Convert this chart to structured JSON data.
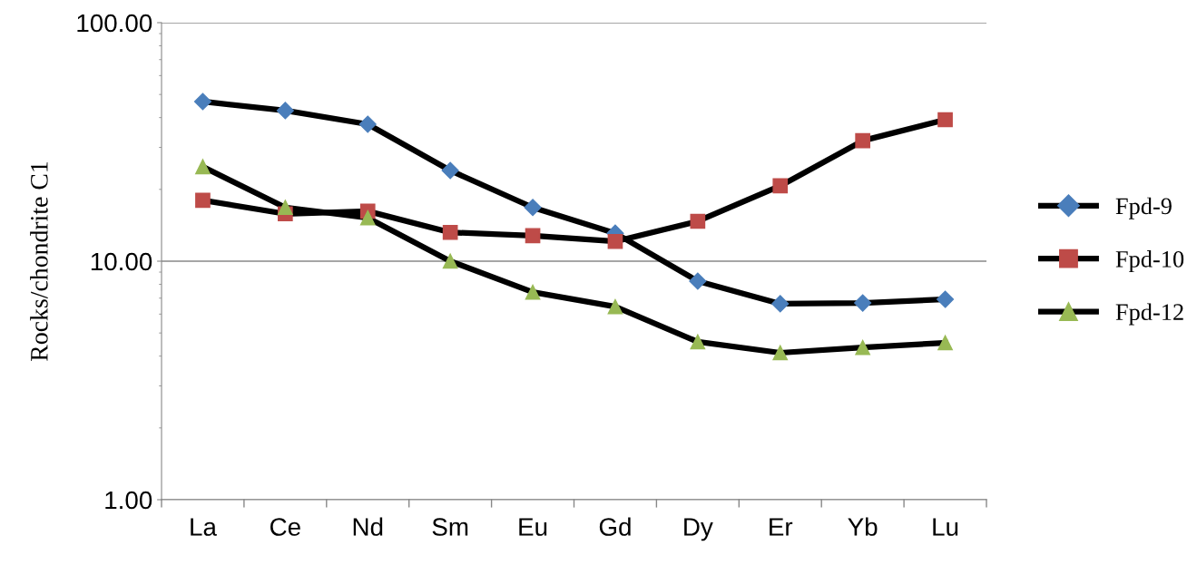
{
  "chart_data": {
    "type": "line",
    "ylabel": "Rocks/chondrite C1",
    "categories": [
      "La",
      "Ce",
      "Nd",
      "Sm",
      "Eu",
      "Gd",
      "Dy",
      "Er",
      "Yb",
      "Lu"
    ],
    "series": [
      {
        "name": "Fpd-9",
        "color": "#4a7ebb",
        "marker": "diamond",
        "values": [
          46.7,
          42.8,
          37.5,
          24.0,
          16.8,
          13.1,
          8.25,
          6.63,
          6.68,
          6.92
        ]
      },
      {
        "name": "Fpd-10",
        "color": "#be4b48",
        "marker": "square",
        "values": [
          18.0,
          15.8,
          16.2,
          13.2,
          12.8,
          12.1,
          14.7,
          20.7,
          32.0,
          39.2
        ]
      },
      {
        "name": "Fpd-12",
        "color": "#98b954",
        "marker": "triangle",
        "values": [
          24.9,
          16.8,
          15.2,
          10.0,
          7.42,
          6.45,
          4.59,
          4.13,
          4.35,
          4.55
        ]
      }
    ],
    "log": "y",
    "ylim": [
      1,
      100
    ],
    "yticks": [
      {
        "value": 1,
        "label": "1.00"
      },
      {
        "value": 10,
        "label": "10.00"
      },
      {
        "value": 100,
        "label": "100.00"
      }
    ],
    "grid": "y",
    "legend": "right",
    "line_style": "solid"
  }
}
